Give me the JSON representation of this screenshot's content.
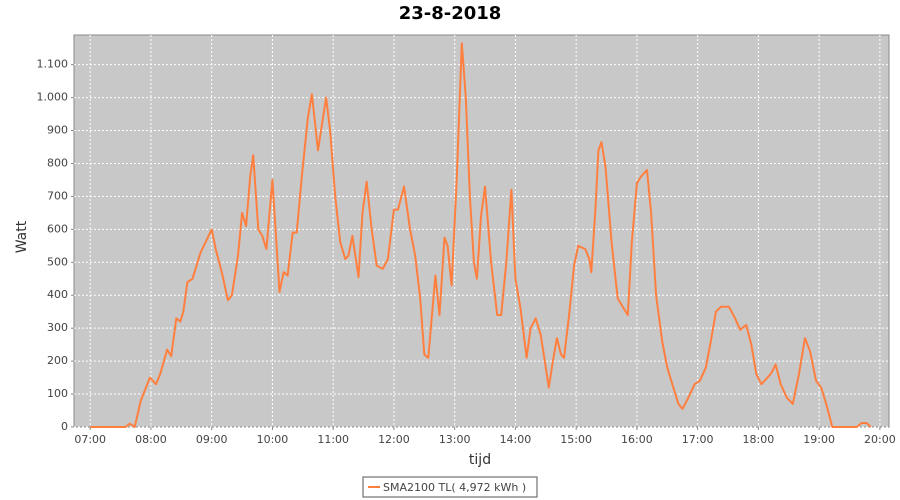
{
  "chart_data": {
    "type": "line",
    "title": "23-8-2018",
    "xlabel": "tijd",
    "ylabel": "Watt",
    "x": [
      "07:00",
      "07:35",
      "07:39",
      "07:44",
      "07:50",
      "07:59",
      "08:05",
      "08:09",
      "08:16",
      "08:20",
      "08:25",
      "08:29",
      "08:32",
      "08:36",
      "08:41",
      "08:49",
      "09:00",
      "09:04",
      "09:10",
      "09:16",
      "09:20",
      "09:26",
      "09:30",
      "09:34",
      "09:38",
      "09:41",
      "09:46",
      "09:50",
      "09:54",
      "09:58",
      "10:00",
      "10:07",
      "10:11",
      "10:15",
      "10:20",
      "10:24",
      "10:29",
      "10:35",
      "10:39",
      "10:45",
      "10:53",
      "10:57",
      "11:02",
      "11:07",
      "11:12",
      "11:15",
      "11:19",
      "11:25",
      "11:29",
      "11:33",
      "11:38",
      "11:43",
      "11:49",
      "11:54",
      "12:00",
      "12:04",
      "12:10",
      "12:16",
      "12:21",
      "12:26",
      "12:30",
      "12:34",
      "12:37",
      "12:41",
      "12:45",
      "12:50",
      "12:53",
      "12:57",
      "13:02",
      "13:07",
      "13:11",
      "13:15",
      "13:19",
      "13:22",
      "13:26",
      "13:30",
      "13:36",
      "13:42",
      "13:46",
      "13:51",
      "13:56",
      "14:00",
      "14:05",
      "14:11",
      "14:15",
      "14:20",
      "14:25",
      "14:29",
      "14:33",
      "14:37",
      "14:41",
      "14:45",
      "14:48",
      "14:53",
      "14:58",
      "15:02",
      "15:09",
      "15:13",
      "15:15",
      "15:19",
      "15:22",
      "15:25",
      "15:29",
      "15:35",
      "15:41",
      "15:47",
      "15:51",
      "15:55",
      "16:00",
      "16:04",
      "16:10",
      "16:14",
      "16:19",
      "16:25",
      "16:30",
      "16:35",
      "16:41",
      "16:45",
      "16:51",
      "16:57",
      "17:02",
      "17:08",
      "17:13",
      "17:18",
      "17:23",
      "17:31",
      "17:37",
      "17:42",
      "17:48",
      "17:53",
      "17:58",
      "18:03",
      "18:09",
      "18:13",
      "18:17",
      "18:22",
      "18:28",
      "18:34",
      "18:40",
      "18:46",
      "18:51",
      "18:57",
      "19:02",
      "19:07",
      "19:13",
      "19:37",
      "19:42",
      "19:47",
      "19:51"
    ],
    "series": [
      {
        "name": "SMA2100 TL( 4,972 kWh )",
        "color": "#ff7f3f",
        "values": [
          0,
          0,
          10,
          0,
          80,
          150,
          130,
          160,
          235,
          215,
          330,
          320,
          350,
          440,
          450,
          530,
          600,
          540,
          470,
          385,
          400,
          520,
          650,
          610,
          760,
          825,
          600,
          580,
          540,
          680,
          750,
          410,
          470,
          460,
          590,
          590,
          760,
          940,
          1010,
          840,
          1000,
          900,
          700,
          560,
          510,
          520,
          580,
          455,
          650,
          745,
          600,
          490,
          480,
          510,
          660,
          660,
          730,
          600,
          520,
          390,
          220,
          210,
          320,
          460,
          340,
          575,
          550,
          430,
          750,
          1165,
          1000,
          700,
          500,
          450,
          640,
          730,
          500,
          340,
          340,
          500,
          720,
          450,
          360,
          210,
          300,
          330,
          280,
          200,
          120,
          200,
          270,
          220,
          210,
          340,
          490,
          550,
          540,
          510,
          470,
          660,
          840,
          865,
          790,
          560,
          390,
          360,
          340,
          560,
          740,
          760,
          780,
          650,
          400,
          260,
          180,
          130,
          70,
          55,
          90,
          130,
          140,
          180,
          260,
          350,
          365,
          365,
          330,
          295,
          310,
          250,
          160,
          130,
          150,
          165,
          190,
          130,
          90,
          70,
          160,
          270,
          230,
          140,
          120,
          70,
          0,
          0,
          12,
          12,
          0
        ]
      }
    ],
    "xlim": [
      "06:44",
      "20:09"
    ],
    "xticks": [
      "07:00",
      "08:00",
      "09:00",
      "10:00",
      "11:00",
      "12:00",
      "13:00",
      "14:00",
      "15:00",
      "16:00",
      "17:00",
      "18:00",
      "19:00",
      "20:00"
    ],
    "ylim": [
      0,
      1190
    ],
    "yticks": [
      0,
      100,
      200,
      300,
      400,
      500,
      600,
      700,
      800,
      900,
      {
        "value": 1000,
        "label": "1.000"
      },
      {
        "value": 1100,
        "label": "1.100"
      }
    ],
    "grid": true
  }
}
